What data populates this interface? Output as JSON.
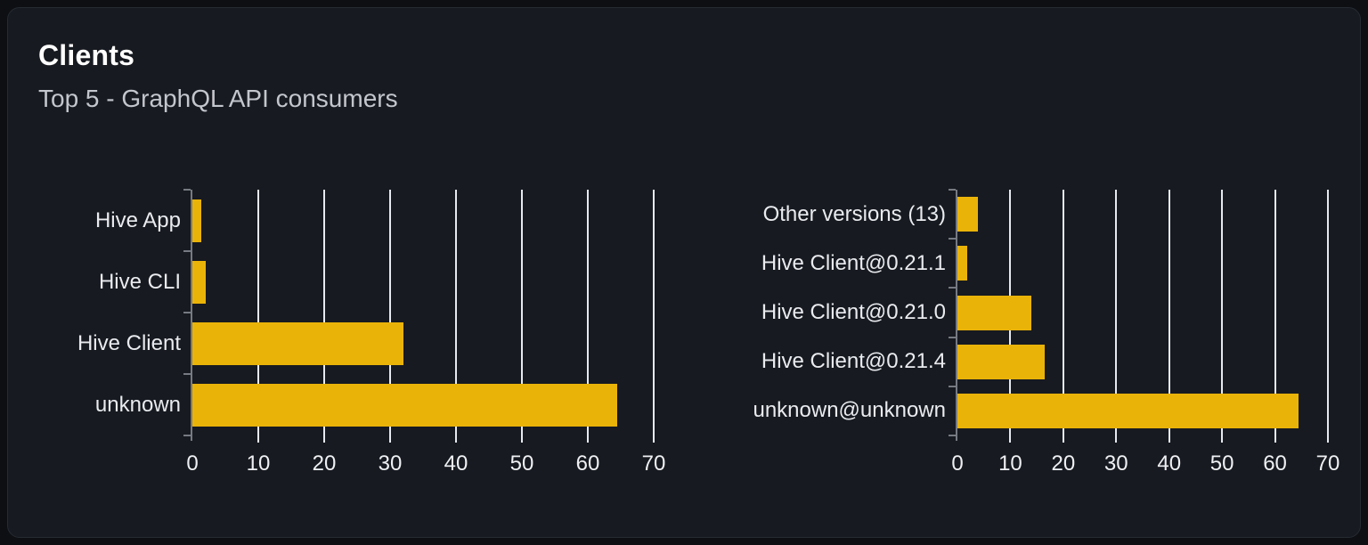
{
  "header": {
    "title": "Clients",
    "subtitle": "Top 5 - GraphQL API consumers"
  },
  "colors": {
    "bar": "#eab308",
    "gridline": "#e7e9f0",
    "axis": "#767a82",
    "category_label": "#e9ebef",
    "tick_label": "#eef0f3",
    "title": "#ffffff",
    "subtitle": "#c3c6cc",
    "card_background": "#171a20",
    "card_border": "#262b33",
    "page_background": "#0d0f13"
  },
  "chart_data": [
    {
      "type": "bar",
      "orientation": "horizontal",
      "title": "",
      "categories": [
        "Hive App",
        "Hive CLI",
        "Hive Client",
        "unknown"
      ],
      "values": [
        1.4,
        2.0,
        32.0,
        64.4
      ],
      "xlabel": "",
      "ylabel": "",
      "xlim": [
        0,
        70
      ],
      "xticks": [
        0,
        10,
        20,
        30,
        40,
        50,
        60,
        70
      ],
      "grid": true,
      "legend": false
    },
    {
      "type": "bar",
      "orientation": "horizontal",
      "title": "",
      "categories": [
        "Other versions (13)",
        "Hive Client@0.21.1",
        "Hive Client@0.21.0",
        "Hive Client@0.21.4",
        "unknown@unknown"
      ],
      "values": [
        3.9,
        1.9,
        13.9,
        16.5,
        64.5
      ],
      "xlabel": "",
      "ylabel": "",
      "xlim": [
        0,
        70
      ],
      "xticks": [
        0,
        10,
        20,
        30,
        40,
        50,
        60,
        70
      ],
      "grid": true,
      "legend": false
    }
  ]
}
